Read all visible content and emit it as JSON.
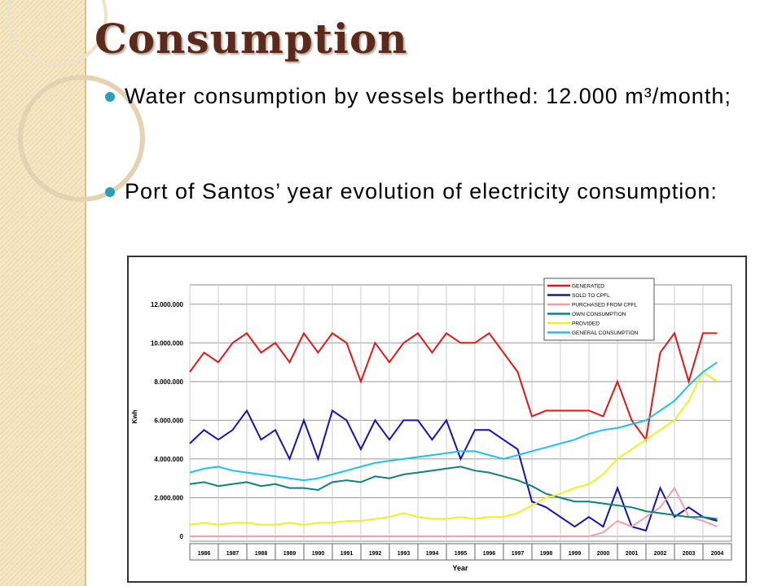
{
  "slide": {
    "title": "Consumption",
    "bullets": [
      "Water consumption by vessels berthed: 12.000 m³/month;",
      "Port of Santos’ year evolution of electricity consumption:"
    ]
  },
  "chart_data": {
    "type": "line",
    "ylabel": "Kwh",
    "xlabel": "Year",
    "x": [
      1986,
      1986.5,
      1987,
      1987.5,
      1988,
      1988.5,
      1989,
      1989.5,
      1990,
      1990.5,
      1991,
      1991.5,
      1992,
      1992.5,
      1993,
      1993.5,
      1994,
      1994.5,
      1995,
      1995.5,
      1996,
      1996.5,
      1997,
      1997.5,
      1998,
      1998.5,
      1999,
      1999.5,
      2000,
      2000.5,
      2001,
      2001.5,
      2002,
      2002.5,
      2003,
      2003.5,
      2004,
      2004.5
    ],
    "xlim": [
      1986,
      2005
    ],
    "xticks": [
      1986,
      1987,
      1988,
      1989,
      1990,
      1991,
      1992,
      1993,
      1994,
      1995,
      1996,
      1997,
      1998,
      1999,
      2000,
      2001,
      2002,
      2003,
      2004
    ],
    "ylim": [
      0,
      13000000
    ],
    "yticks": [
      0,
      {
        "value": 2000000,
        "label": "2.000.000"
      },
      {
        "value": 4000000,
        "label": "4.000.000"
      },
      {
        "value": 6000000,
        "label": "6.000.000"
      },
      {
        "value": 8000000,
        "label": "8.000.000"
      },
      {
        "value": 10000000,
        "label": "10.000.000"
      },
      {
        "value": 12000000,
        "label": "12.000.000"
      }
    ],
    "grid": true,
    "legend": "upper right",
    "series": [
      {
        "name": "GENERATED",
        "color": "#e01818",
        "values": [
          8500000,
          9500000,
          9000000,
          10000000,
          10500000,
          9500000,
          10000000,
          9000000,
          10500000,
          9500000,
          10500000,
          10000000,
          8000000,
          10000000,
          9000000,
          10000000,
          10500000,
          9500000,
          10500000,
          10000000,
          10000000,
          10500000,
          9500000,
          8500000,
          6200000,
          6500000,
          6500000,
          6500000,
          6500000,
          6200000,
          8000000,
          6000000,
          5000000,
          9500000,
          10500000,
          8000000,
          10500000,
          10500000
        ]
      },
      {
        "name": "SOLD TO CPFL",
        "color": "#1414b4",
        "values": [
          4800000,
          5500000,
          5000000,
          5500000,
          6500000,
          5000000,
          5500000,
          4000000,
          6000000,
          4000000,
          6500000,
          6000000,
          4500000,
          6000000,
          5000000,
          6000000,
          6000000,
          5000000,
          6000000,
          4000000,
          5500000,
          5500000,
          5000000,
          4500000,
          1800000,
          1500000,
          1000000,
          500000,
          1000000,
          500000,
          2500000,
          500000,
          300000,
          2500000,
          1000000,
          1500000,
          1000000,
          800000
        ]
      },
      {
        "name": "PURCHASED FROM CPFL",
        "color": "#f0a0a8",
        "values": [
          0,
          0,
          0,
          0,
          0,
          0,
          0,
          0,
          0,
          0,
          0,
          0,
          0,
          0,
          0,
          0,
          0,
          0,
          0,
          0,
          0,
          0,
          0,
          0,
          0,
          0,
          0,
          0,
          0,
          200000,
          800000,
          500000,
          1000000,
          1500000,
          2500000,
          1000000,
          800000,
          500000
        ]
      },
      {
        "name": "OWN CONSUMPTION",
        "color": "#108080",
        "values": [
          2700000,
          2800000,
          2600000,
          2700000,
          2800000,
          2600000,
          2700000,
          2500000,
          2500000,
          2400000,
          2800000,
          2900000,
          2800000,
          3100000,
          3000000,
          3200000,
          3300000,
          3400000,
          3500000,
          3600000,
          3400000,
          3300000,
          3100000,
          2900000,
          2600000,
          2200000,
          2000000,
          1800000,
          1800000,
          1700000,
          1600000,
          1500000,
          1300000,
          1200000,
          1100000,
          1000000,
          1000000,
          900000
        ]
      },
      {
        "name": "PROVIDED",
        "color": "#f0f020",
        "values": [
          600000,
          700000,
          600000,
          700000,
          700000,
          600000,
          600000,
          700000,
          600000,
          700000,
          700000,
          800000,
          800000,
          900000,
          1000000,
          1200000,
          1000000,
          900000,
          900000,
          1000000,
          900000,
          1000000,
          1000000,
          1200000,
          1600000,
          2000000,
          2200000,
          2500000,
          2700000,
          3200000,
          4000000,
          4500000,
          5000000,
          5500000,
          6000000,
          7000000,
          8500000,
          8000000
        ]
      },
      {
        "name": "GENERAL CONSUMPTION",
        "color": "#20c0e8",
        "values": [
          3300000,
          3500000,
          3600000,
          3400000,
          3300000,
          3200000,
          3100000,
          3000000,
          2900000,
          3000000,
          3200000,
          3400000,
          3600000,
          3800000,
          3900000,
          4000000,
          4100000,
          4200000,
          4300000,
          4400000,
          4400000,
          4200000,
          4000000,
          4200000,
          4400000,
          4600000,
          4800000,
          5000000,
          5300000,
          5500000,
          5600000,
          5800000,
          6000000,
          6500000,
          7000000,
          7800000,
          8500000,
          9000000
        ]
      }
    ]
  }
}
